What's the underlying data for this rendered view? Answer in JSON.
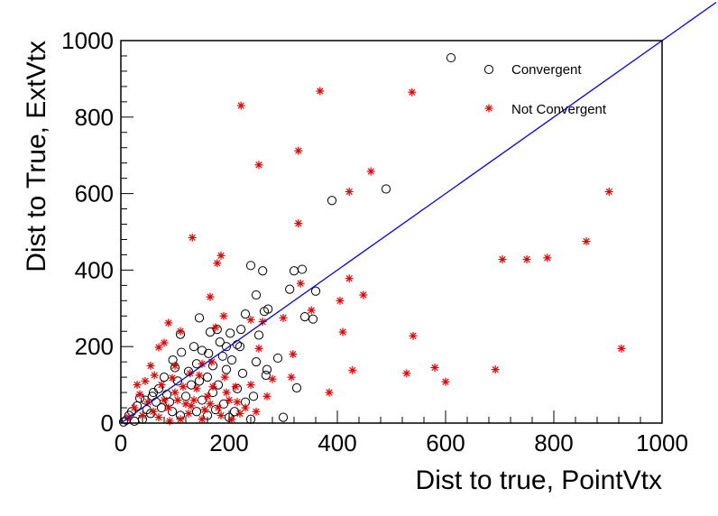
{
  "chart_data": {
    "type": "scatter",
    "xlabel": "Dist to true, PointVtx",
    "ylabel": "Dist to True, ExtVtx",
    "xlim": [
      0,
      1000
    ],
    "ylim": [
      0,
      1000
    ],
    "x_ticks": [
      "0",
      "200",
      "400",
      "600",
      "800",
      "1000"
    ],
    "y_ticks": [
      "0",
      "200",
      "400",
      "600",
      "800",
      "1000"
    ],
    "grid": false,
    "legend_position": "top-right",
    "reference_line": {
      "from": [
        0,
        0
      ],
      "to": [
        1100,
        1100
      ],
      "color": "#0000dd"
    },
    "colors": {
      "convergent": "#000000",
      "not_convergent": "#dd0000"
    },
    "series": [
      {
        "name": "Convergent",
        "marker": "open-circle",
        "points": [
          [
            610,
            955
          ],
          [
            490,
            612
          ],
          [
            390,
            582
          ],
          [
            240,
            412
          ],
          [
            262,
            398
          ],
          [
            320,
            398
          ],
          [
            335,
            402
          ],
          [
            250,
            335
          ],
          [
            312,
            350
          ],
          [
            360,
            345
          ],
          [
            265,
            292
          ],
          [
            355,
            272
          ],
          [
            230,
            285
          ],
          [
            340,
            278
          ],
          [
            272,
            298
          ],
          [
            222,
            245
          ],
          [
            215,
            205
          ],
          [
            195,
            200
          ],
          [
            202,
            235
          ],
          [
            183,
            212
          ],
          [
            250,
            160
          ],
          [
            270,
            140
          ],
          [
            268,
            125
          ],
          [
            325,
            92
          ],
          [
            240,
            10
          ],
          [
            300,
            15
          ],
          [
            290,
            170
          ],
          [
            145,
            275
          ],
          [
            110,
            232
          ],
          [
            165,
            238
          ],
          [
            178,
            245
          ],
          [
            150,
            190
          ],
          [
            162,
            182
          ],
          [
            140,
            155
          ],
          [
            125,
            135
          ],
          [
            100,
            145
          ],
          [
            80,
            120
          ],
          [
            70,
            90
          ],
          [
            60,
            80
          ],
          [
            45,
            60
          ],
          [
            30,
            45
          ],
          [
            20,
            30
          ],
          [
            15,
            20
          ],
          [
            55,
            25
          ],
          [
            90,
            55
          ],
          [
            120,
            70
          ],
          [
            150,
            60
          ],
          [
            170,
            80
          ],
          [
            190,
            50
          ],
          [
            210,
            30
          ],
          [
            200,
            15
          ],
          [
            180,
            100
          ],
          [
            130,
            100
          ],
          [
            105,
            110
          ],
          [
            85,
            75
          ],
          [
            75,
            40
          ],
          [
            65,
            55
          ],
          [
            40,
            10
          ],
          [
            25,
            5
          ],
          [
            110,
            20
          ],
          [
            140,
            30
          ],
          [
            160,
            20
          ],
          [
            175,
            35
          ],
          [
            95,
            30
          ],
          [
            230,
            55
          ],
          [
            245,
            70
          ],
          [
            225,
            130
          ],
          [
            205,
            165
          ],
          [
            188,
            175
          ],
          [
            160,
            120
          ],
          [
            145,
            110
          ],
          [
            112,
            185
          ],
          [
            96,
            165
          ],
          [
            135,
            200
          ],
          [
            58,
            70
          ],
          [
            48,
            35
          ],
          [
            35,
            65
          ],
          [
            10,
            8
          ],
          [
            5,
            3
          ],
          [
            220,
            200
          ],
          [
            215,
            90
          ],
          [
            195,
            140
          ],
          [
            170,
            150
          ],
          [
            255,
            230
          ]
        ]
      },
      {
        "name": "Not Convergent",
        "marker": "asterisk",
        "points": [
          [
            368,
            868
          ],
          [
            538,
            865
          ],
          [
            222,
            830
          ],
          [
            328,
            712
          ],
          [
            255,
            675
          ],
          [
            462,
            658
          ],
          [
            422,
            605
          ],
          [
            902,
            605
          ],
          [
            328,
            522
          ],
          [
            132,
            485
          ],
          [
            860,
            475
          ],
          [
            705,
            428
          ],
          [
            750,
            428
          ],
          [
            788,
            432
          ],
          [
            185,
            438
          ],
          [
            178,
            418
          ],
          [
            332,
            365
          ],
          [
            422,
            378
          ],
          [
            448,
            335
          ],
          [
            405,
            320
          ],
          [
            165,
            330
          ],
          [
            352,
            295
          ],
          [
            300,
            275
          ],
          [
            410,
            238
          ],
          [
            540,
            228
          ],
          [
            925,
            195
          ],
          [
            240,
            270
          ],
          [
            262,
            265
          ],
          [
            190,
            280
          ],
          [
            175,
            250
          ],
          [
            70,
            198
          ],
          [
            80,
            210
          ],
          [
            110,
            240
          ],
          [
            88,
            262
          ],
          [
            150,
            155
          ],
          [
            168,
            160
          ],
          [
            255,
            195
          ],
          [
            318,
            180
          ],
          [
            580,
            145
          ],
          [
            692,
            140
          ],
          [
            428,
            138
          ],
          [
            528,
            130
          ],
          [
            600,
            108
          ],
          [
            385,
            80
          ],
          [
            315,
            120
          ],
          [
            280,
            115
          ],
          [
            270,
            70
          ],
          [
            240,
            100
          ],
          [
            212,
            95
          ],
          [
            192,
            120
          ],
          [
            128,
            130
          ],
          [
            100,
            150
          ],
          [
            55,
            150
          ],
          [
            45,
            110
          ],
          [
            35,
            75
          ],
          [
            25,
            40
          ],
          [
            15,
            15
          ],
          [
            60,
            30
          ],
          [
            80,
            60
          ],
          [
            100,
            80
          ],
          [
            120,
            50
          ],
          [
            140,
            90
          ],
          [
            160,
            70
          ],
          [
            180,
            40
          ],
          [
            200,
            60
          ],
          [
            220,
            25
          ],
          [
            110,
            10
          ],
          [
            90,
            5
          ],
          [
            150,
            10
          ],
          [
            130,
            45
          ],
          [
            75,
            100
          ],
          [
            62,
            125
          ],
          [
            95,
            118
          ],
          [
            115,
            95
          ],
          [
            135,
            60
          ],
          [
            155,
            35
          ],
          [
            170,
            95
          ],
          [
            185,
            20
          ],
          [
            205,
            10
          ],
          [
            230,
            40
          ],
          [
            250,
            30
          ],
          [
            40,
            20
          ],
          [
            50,
            55
          ],
          [
            70,
            15
          ],
          [
            30,
            100
          ],
          [
            88,
            40
          ],
          [
            145,
            125
          ],
          [
            105,
            60
          ],
          [
            125,
            25
          ],
          [
            165,
            50
          ],
          [
            195,
            80
          ],
          [
            215,
            55
          ]
        ]
      }
    ]
  }
}
